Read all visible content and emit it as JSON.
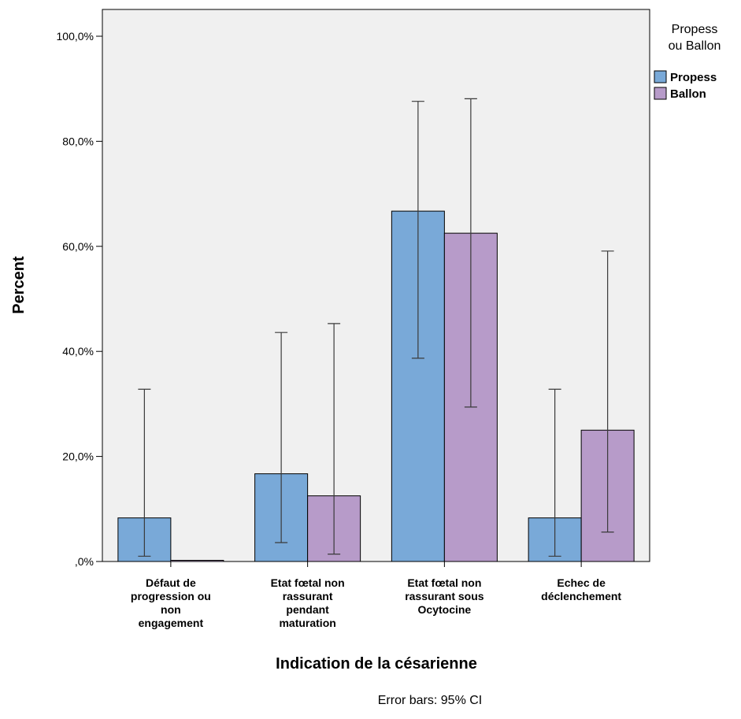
{
  "chart_data": {
    "type": "bar",
    "xlabel": "Indication de la césarienne",
    "ylabel": "Percent",
    "ylim": [
      0,
      100
    ],
    "yticks": [
      {
        "value": 0,
        "label": ",0%"
      },
      {
        "value": 20,
        "label": "20,0%"
      },
      {
        "value": 40,
        "label": "40,0%"
      },
      {
        "value": 60,
        "label": "60,0%"
      },
      {
        "value": 80,
        "label": "80,0%"
      },
      {
        "value": 100,
        "label": "100,0%"
      }
    ],
    "categories": [
      {
        "lines": [
          "Défaut de",
          "progression ou",
          "non",
          "engagement"
        ]
      },
      {
        "lines": [
          "Etat fœtal non",
          "rassurant",
          "pendant",
          "maturation"
        ]
      },
      {
        "lines": [
          "Etat fœtal non",
          "rassurant sous",
          "Ocytocine"
        ]
      },
      {
        "lines": [
          "Echec de",
          "déclenchement"
        ]
      }
    ],
    "series": [
      {
        "name": "Propess",
        "color": "#79a9d8",
        "values": [
          8.3,
          16.7,
          66.7,
          8.3
        ],
        "ci_low": [
          1.0,
          3.6,
          38.7,
          1.0
        ],
        "ci_high": [
          32.8,
          43.6,
          87.6,
          32.8
        ]
      },
      {
        "name": "Ballon",
        "color": "#b79bc9",
        "values": [
          0,
          12.5,
          62.5,
          25.0
        ],
        "ci_low": [
          null,
          1.4,
          29.4,
          5.6
        ],
        "ci_high": [
          null,
          45.3,
          88.1,
          59.1
        ]
      }
    ],
    "legend": {
      "title_lines": [
        "Propess",
        "ou Ballon"
      ],
      "position": "top-right"
    },
    "grid": false,
    "note": "Error bars: 95% CI"
  }
}
